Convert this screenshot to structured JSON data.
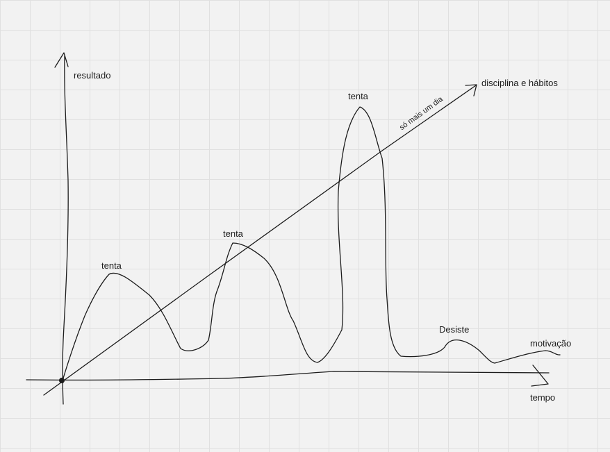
{
  "axes": {
    "y_label": "resultado",
    "x_label": "tempo"
  },
  "lines": {
    "discipline_label": "disciplina e hábitos",
    "discipline_annotation": "só mais um dia",
    "motivation_label": "motivação"
  },
  "annotations": {
    "peak_1": "tenta",
    "peak_2": "tenta",
    "peak_3": "tenta",
    "quit": "Desiste"
  },
  "colors": {
    "background": "#f2f2f2",
    "grid": "#e0e0e0",
    "ink": "#1c1c1c"
  }
}
